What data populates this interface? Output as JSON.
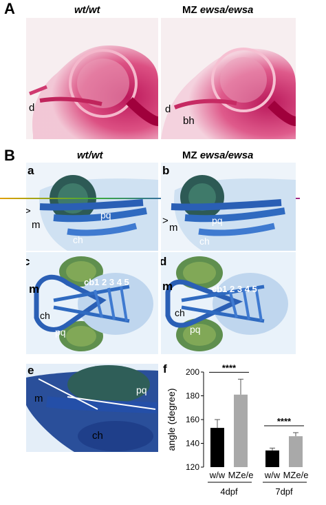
{
  "panel_A": {
    "letter": "A",
    "col1_header": "wt/wt",
    "col2_prefix": "MZ ",
    "col2_genotype": "ewsa/ewsa",
    "photo1_labels": [
      "d"
    ],
    "photo2_labels": [
      "d",
      "bh"
    ]
  },
  "panel_B": {
    "letter": "B",
    "col1_header": "wt/wt",
    "col2_prefix": "MZ ",
    "col2_genotype": "ewsa/ewsa",
    "a": {
      "letter": "a",
      "caret": ">",
      "labels": [
        "m",
        "pq",
        "ch"
      ]
    },
    "b": {
      "letter": "b",
      "caret": ">",
      "labels": [
        "m",
        "pq",
        "ch"
      ]
    },
    "c": {
      "letter": "c",
      "labels": [
        "m",
        "ch",
        "pq"
      ],
      "arches": "cb1 2 3 4 5"
    },
    "d": {
      "letter": "d",
      "labels": [
        "m",
        "ch",
        "pq"
      ],
      "arches": "cb1 2 3 4 5"
    },
    "e": {
      "letter": "e",
      "labels": [
        "m",
        "pq",
        "ch"
      ]
    }
  },
  "chart_letter": "f",
  "chart_data": {
    "type": "bar",
    "ylabel": "angle (degree)",
    "ylim": [
      120,
      200
    ],
    "yticks": [
      120,
      140,
      160,
      180,
      200
    ],
    "groups": [
      {
        "name": "4dpf",
        "bars": [
          {
            "label": "w/w",
            "value": 153,
            "error": 7,
            "color": "#000000"
          },
          {
            "label": "MZe/e",
            "value": 181,
            "error": 13,
            "color": "#a9a9a9"
          }
        ],
        "significance": "****"
      },
      {
        "name": "7dpf",
        "bars": [
          {
            "label": "w/w",
            "value": 134,
            "error": 2,
            "color": "#000000"
          },
          {
            "label": "MZe/e",
            "value": 146,
            "error": 3,
            "color": "#a9a9a9"
          }
        ],
        "significance": "****"
      }
    ]
  }
}
